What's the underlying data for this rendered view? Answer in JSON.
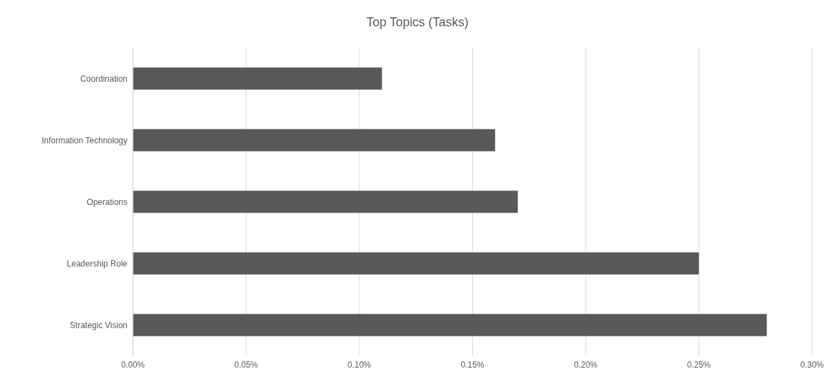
{
  "chart_data": {
    "type": "bar",
    "orientation": "horizontal",
    "title": "Top Topics (Tasks)",
    "categories": [
      "Coordination",
      "Information Technology",
      "Operations",
      "Leadership Role",
      "Strategic Vision"
    ],
    "values": [
      0.11,
      0.16,
      0.17,
      0.25,
      0.28
    ],
    "color": "#595959",
    "xlim": [
      0,
      0.3
    ],
    "xticks": [
      {
        "value": 0,
        "label": "0.00%"
      },
      {
        "value": 0.05,
        "label": "0.05%"
      },
      {
        "value": 0.1,
        "label": "0.10%"
      },
      {
        "value": 0.15,
        "label": "0.15%"
      },
      {
        "value": 0.2,
        "label": "0.20%"
      },
      {
        "value": 0.25,
        "label": "0.25%"
      },
      {
        "value": 0.3,
        "label": "0.30%"
      }
    ],
    "grid": "x"
  }
}
